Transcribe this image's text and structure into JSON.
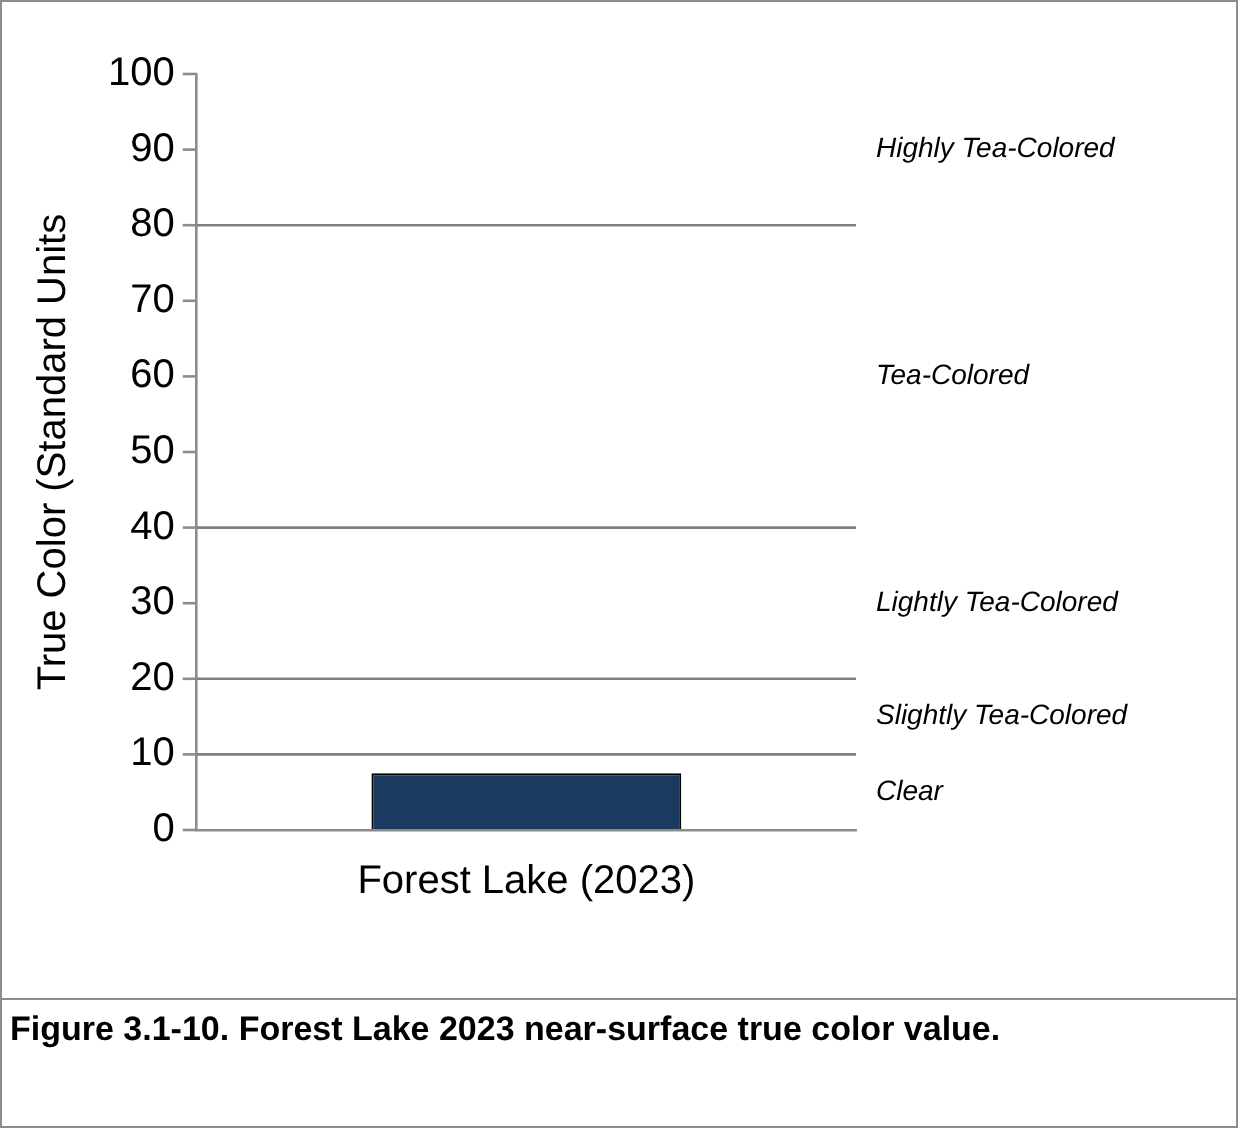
{
  "chart_data": {
    "type": "bar",
    "ylabel": "True Color (Standard Units",
    "categories": [
      "Forest Lake (2023)"
    ],
    "values": [
      7.5
    ],
    "color": "#1b3a5f",
    "ylim": [
      0,
      100
    ],
    "yticks": [
      0,
      10,
      20,
      30,
      40,
      50,
      60,
      70,
      80,
      90,
      100
    ],
    "grid": false,
    "ref_lines": [
      {
        "axis": "y",
        "value": 10,
        "color": "#7f7f7f"
      },
      {
        "axis": "y",
        "value": 20,
        "color": "#7f7f7f"
      },
      {
        "axis": "y",
        "value": 40,
        "color": "#7f7f7f"
      },
      {
        "axis": "y",
        "value": 80,
        "color": "#7f7f7f"
      }
    ],
    "annotations": [
      "Clear",
      "Slightly Tea-Colored",
      "Lightly Tea-Colored",
      "Tea-Colored",
      "Highly Tea-Colored",
      "Figure 3.1-10.  Forest Lake 2023 near-surface true color value."
    ]
  }
}
